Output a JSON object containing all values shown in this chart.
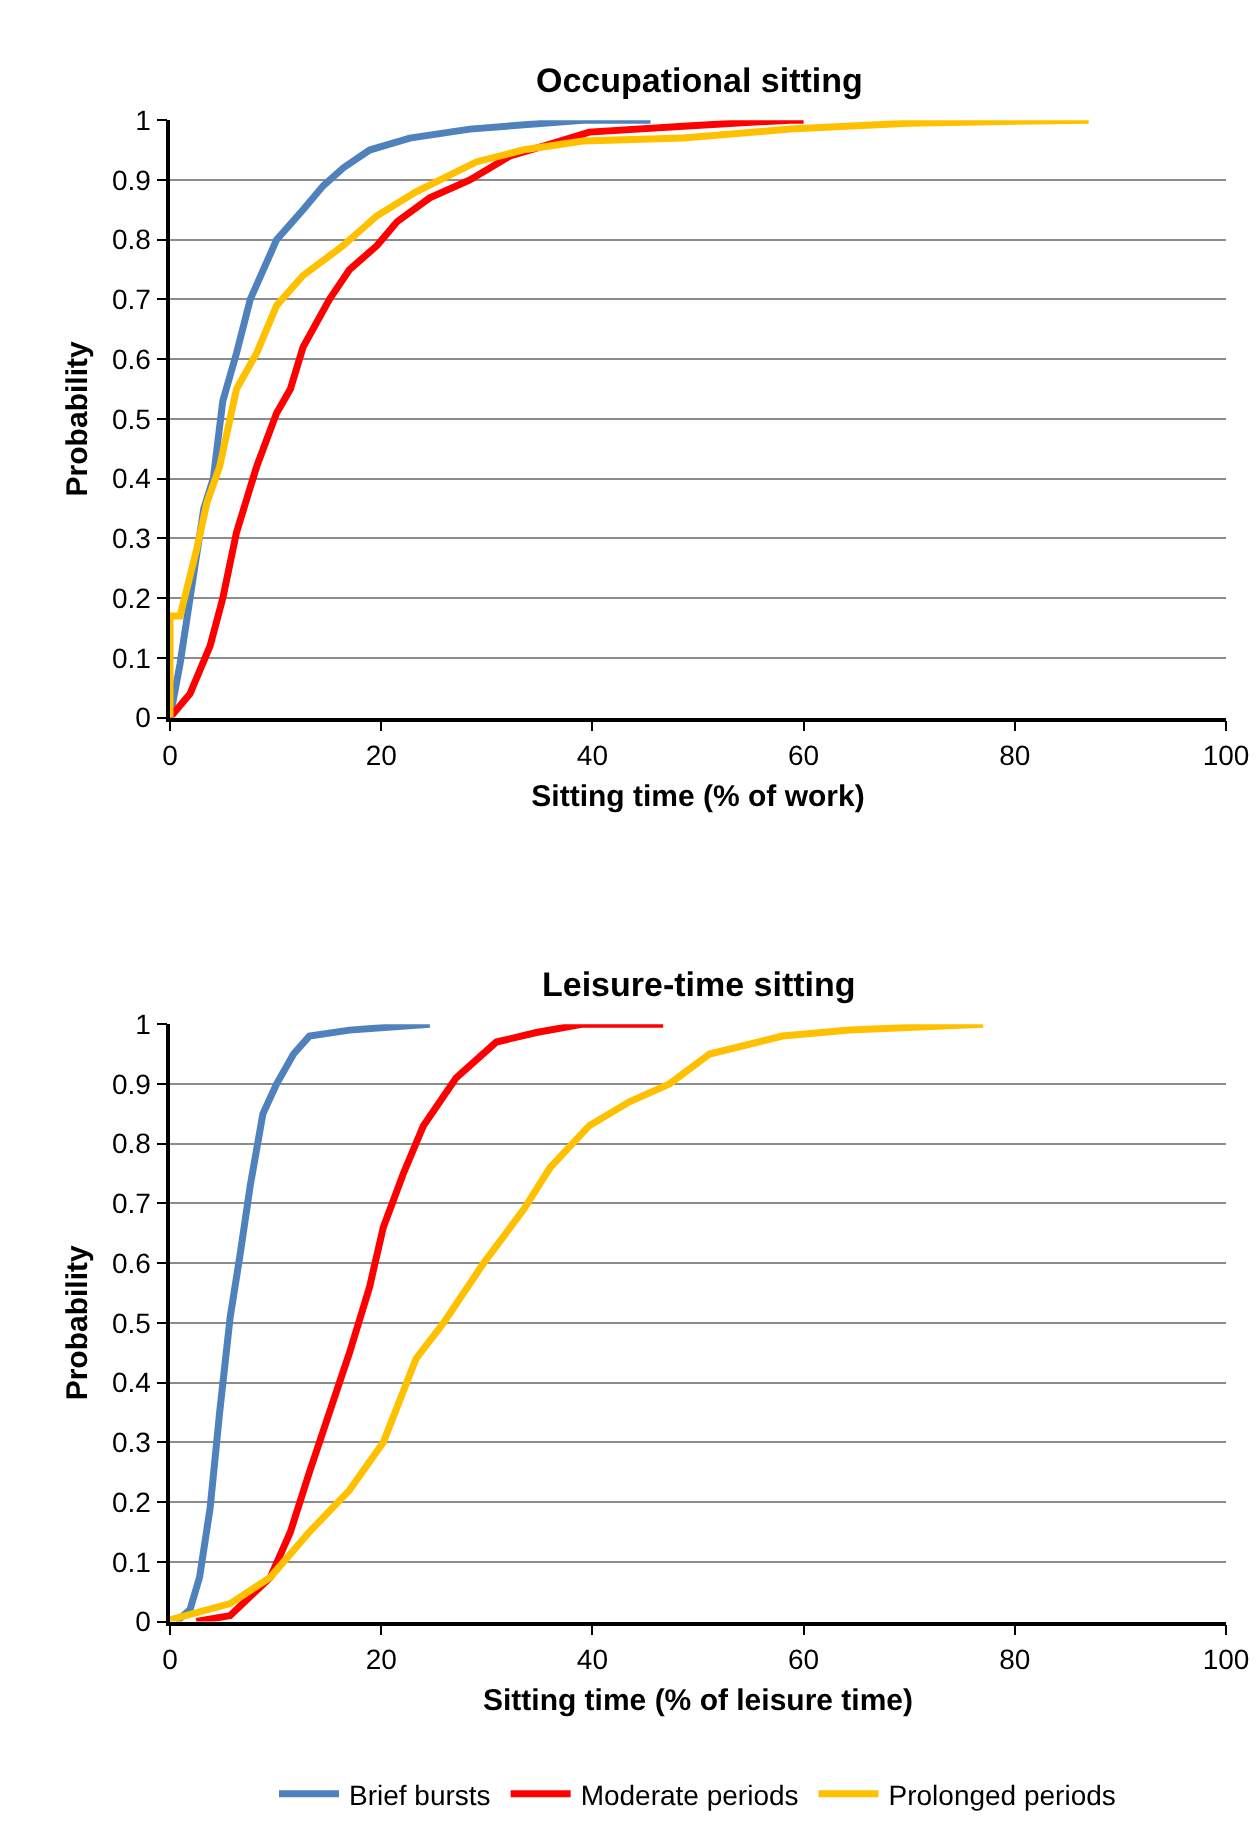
{
  "chart_data": [
    {
      "type": "line",
      "title": "Occupational sitting",
      "xlabel": "Sitting time (% of work)",
      "ylabel": "Probability",
      "xlim": [
        0,
        100
      ],
      "xticks": [
        0,
        20,
        40,
        60,
        80,
        100
      ],
      "ylim": [
        0,
        1
      ],
      "yticks": [
        0,
        0.1,
        0.2,
        0.3,
        0.4,
        0.5,
        0.6,
        0.7,
        0.8,
        0.9,
        1
      ],
      "grid": "y",
      "series": [
        {
          "color": "#4f81bd",
          "x": [
            0,
            0.95,
            1.9,
            3.2,
            4.1,
            5.0,
            6.3,
            7.6,
            10.1,
            12.6,
            14.5,
            16.4,
            18.9,
            22.7,
            28.4,
            39.1,
            45.5
          ],
          "values": [
            0,
            0.09,
            0.2,
            0.35,
            0.4,
            0.53,
            0.61,
            0.7,
            0.8,
            0.85,
            0.89,
            0.92,
            0.95,
            0.97,
            0.985,
            1,
            1
          ]
        },
        {
          "color": "#ff0000",
          "x": [
            0,
            1.9,
            3.8,
            5.0,
            6.3,
            8.2,
            10.1,
            11.4,
            12.6,
            15.1,
            17.0,
            19.6,
            21.5,
            24.6,
            28.4,
            32.2,
            36.0,
            39.7,
            48.6,
            58.7,
            60
          ],
          "values": [
            0,
            0.04,
            0.12,
            0.2,
            0.31,
            0.42,
            0.51,
            0.55,
            0.62,
            0.7,
            0.75,
            0.79,
            0.83,
            0.87,
            0.9,
            0.94,
            0.96,
            0.98,
            0.99,
            1,
            1
          ]
        },
        {
          "color": "#ffc000",
          "x": [
            0,
            0,
            0.95,
            2.5,
            3.5,
            4.7,
            6.3,
            8.2,
            10.1,
            12.6,
            16.4,
            19.6,
            23.3,
            29.0,
            33.4,
            39.1,
            48.6,
            58.7,
            70,
            87
          ],
          "values": [
            0,
            0.17,
            0.17,
            0.28,
            0.36,
            0.42,
            0.55,
            0.61,
            0.69,
            0.74,
            0.79,
            0.84,
            0.88,
            0.93,
            0.95,
            0.965,
            0.97,
            0.985,
            0.995,
            1
          ]
        }
      ]
    },
    {
      "type": "line",
      "title": "Leisure-time sitting",
      "xlabel": "Sitting time (% of leisure time)",
      "ylabel": "Probability",
      "xlim": [
        0,
        100
      ],
      "xticks": [
        0,
        20,
        40,
        60,
        80,
        100
      ],
      "ylim": [
        0,
        1
      ],
      "yticks": [
        0,
        0.1,
        0.2,
        0.3,
        0.4,
        0.5,
        0.6,
        0.7,
        0.8,
        0.9,
        1
      ],
      "grid": "y",
      "legend": "bottom",
      "series": [
        {
          "name": "Brief bursts",
          "color": "#4f81bd",
          "x": [
            0.6,
            1.9,
            2.8,
            3.8,
            4.7,
            5.7,
            6.6,
            7.6,
            8.8,
            10.1,
            11.7,
            13.2,
            17.0,
            24.6
          ],
          "values": [
            0,
            0.02,
            0.074,
            0.19,
            0.35,
            0.51,
            0.61,
            0.73,
            0.85,
            0.9,
            0.95,
            0.98,
            0.99,
            1
          ]
        },
        {
          "name": "Moderate periods",
          "color": "#ff0000",
          "x": [
            2.5,
            5.7,
            9.5,
            11.4,
            13.2,
            15.1,
            17.0,
            18.9,
            20.2,
            22.1,
            24.0,
            27.1,
            30.9,
            34.7,
            39.1,
            46.7
          ],
          "values": [
            0,
            0.01,
            0.074,
            0.15,
            0.25,
            0.35,
            0.45,
            0.56,
            0.66,
            0.75,
            0.83,
            0.91,
            0.97,
            0.986,
            1,
            1
          ]
        },
        {
          "name": "Prolonged periods",
          "color": "#ffc000",
          "x": [
            0,
            5.7,
            9.5,
            13.2,
            17.0,
            20.2,
            23.3,
            25.9,
            29.7,
            33.5,
            36.0,
            39.7,
            43.5,
            47.3,
            51.1,
            58.0,
            64.4,
            77.0
          ],
          "values": [
            0.003,
            0.03,
            0.074,
            0.15,
            0.22,
            0.3,
            0.44,
            0.5,
            0.6,
            0.69,
            0.76,
            0.83,
            0.87,
            0.9,
            0.95,
            0.98,
            0.99,
            1
          ]
        }
      ]
    }
  ]
}
